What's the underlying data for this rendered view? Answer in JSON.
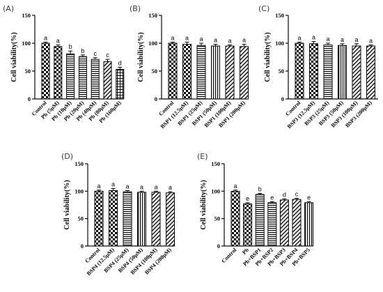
{
  "chart_data": [
    {
      "panel": "(A)",
      "type": "bar",
      "ylabel": "Cell viability(%)",
      "ylim": [
        0,
        150
      ],
      "yticks": [
        "0",
        "50",
        "100",
        "150"
      ],
      "categories": [
        "Control",
        "Pb (5μM)",
        "Pb (10μM)",
        "Pb (20μM)",
        "Pb (40μM)",
        "Pb (80μM)",
        "Pb (160μM)"
      ],
      "values": [
        100,
        94,
        81,
        76,
        71,
        67,
        53
      ],
      "errors": [
        2,
        3,
        5,
        3,
        3,
        4,
        4
      ],
      "letters": [
        "a",
        "a",
        "b",
        "b",
        "c",
        "c",
        "d"
      ],
      "patterns": [
        "check",
        "check",
        "hstripe",
        "hstripe",
        "hstripe",
        "diag",
        "grid"
      ]
    },
    {
      "panel": "(B)",
      "type": "bar",
      "ylabel": "Cell viability(%)",
      "ylim": [
        0,
        150
      ],
      "yticks": [
        "0",
        "50",
        "100",
        "150"
      ],
      "categories": [
        "Control",
        "BSP1 (12.5μM)",
        "BSP1 (25μM)",
        "BSP1 (50μM)",
        "BSP1 (100μM)",
        "BSP1 (200μM)"
      ],
      "values": [
        100,
        98,
        96,
        95,
        95,
        94
      ],
      "errors": [
        2,
        4,
        4,
        3,
        2,
        4
      ],
      "letters": [
        "a",
        "a",
        "a",
        "a",
        "a",
        "a"
      ],
      "patterns": [
        "check",
        "check",
        "hstripe",
        "vstripe",
        "diag",
        "diag"
      ]
    },
    {
      "panel": "(C)",
      "type": "bar",
      "ylabel": "Cell viability(%)",
      "ylim": [
        0,
        150
      ],
      "yticks": [
        "0",
        "50",
        "100",
        "150"
      ],
      "categories": [
        "Control",
        "BSP3 (12.5μM)",
        "BSP3 (25μM)",
        "BSP3 (50μM)",
        "BSP3 (100μM)",
        "BSP3 (200μM)"
      ],
      "values": [
        100,
        99,
        97,
        96,
        95,
        95
      ],
      "errors": [
        2,
        4,
        3,
        3,
        4,
        2
      ],
      "letters": [
        "a",
        "a",
        "a",
        "a",
        "a",
        "a"
      ],
      "patterns": [
        "check",
        "check",
        "hstripe",
        "vstripe",
        "diag",
        "diag"
      ]
    },
    {
      "panel": "(D)",
      "type": "bar",
      "ylabel": "Cell viability(%)",
      "ylim": [
        0,
        150
      ],
      "yticks": [
        "0",
        "50",
        "100",
        "150"
      ],
      "categories": [
        "Control",
        "BSP4 (12.5μM)",
        "BSP4 (25μM)",
        "BSP4 (50μM)",
        "BSP4 (100μM)",
        "BSP4 (200μM)"
      ],
      "values": [
        100,
        101,
        99,
        98,
        98,
        97
      ],
      "errors": [
        2,
        4,
        2,
        2,
        2,
        2
      ],
      "letters": [
        "a",
        "a",
        "a",
        "a",
        "a",
        "a"
      ],
      "patterns": [
        "check",
        "check",
        "hstripe",
        "vstripe",
        "diag",
        "diag"
      ]
    },
    {
      "panel": "(E)",
      "type": "bar",
      "ylabel": "Cell viability(%)",
      "ylim": [
        0,
        150
      ],
      "yticks": [
        "0",
        "50",
        "100",
        "150"
      ],
      "categories": [
        "Control",
        "Pb",
        "Pb+BSP1",
        "Pb+BSP2",
        "Pb+BSP3",
        "Pb+BSP4",
        "Pb+BSP5"
      ],
      "values": [
        100,
        77,
        94,
        79,
        84,
        85,
        79
      ],
      "errors": [
        2,
        2,
        2,
        2,
        2,
        2,
        2
      ],
      "letters": [
        "a",
        "e",
        "b",
        "e",
        "d",
        "c",
        "e"
      ],
      "patterns": [
        "check",
        "check",
        "hstripe",
        "hstripe",
        "diag",
        "diag",
        "vstripe"
      ]
    }
  ]
}
